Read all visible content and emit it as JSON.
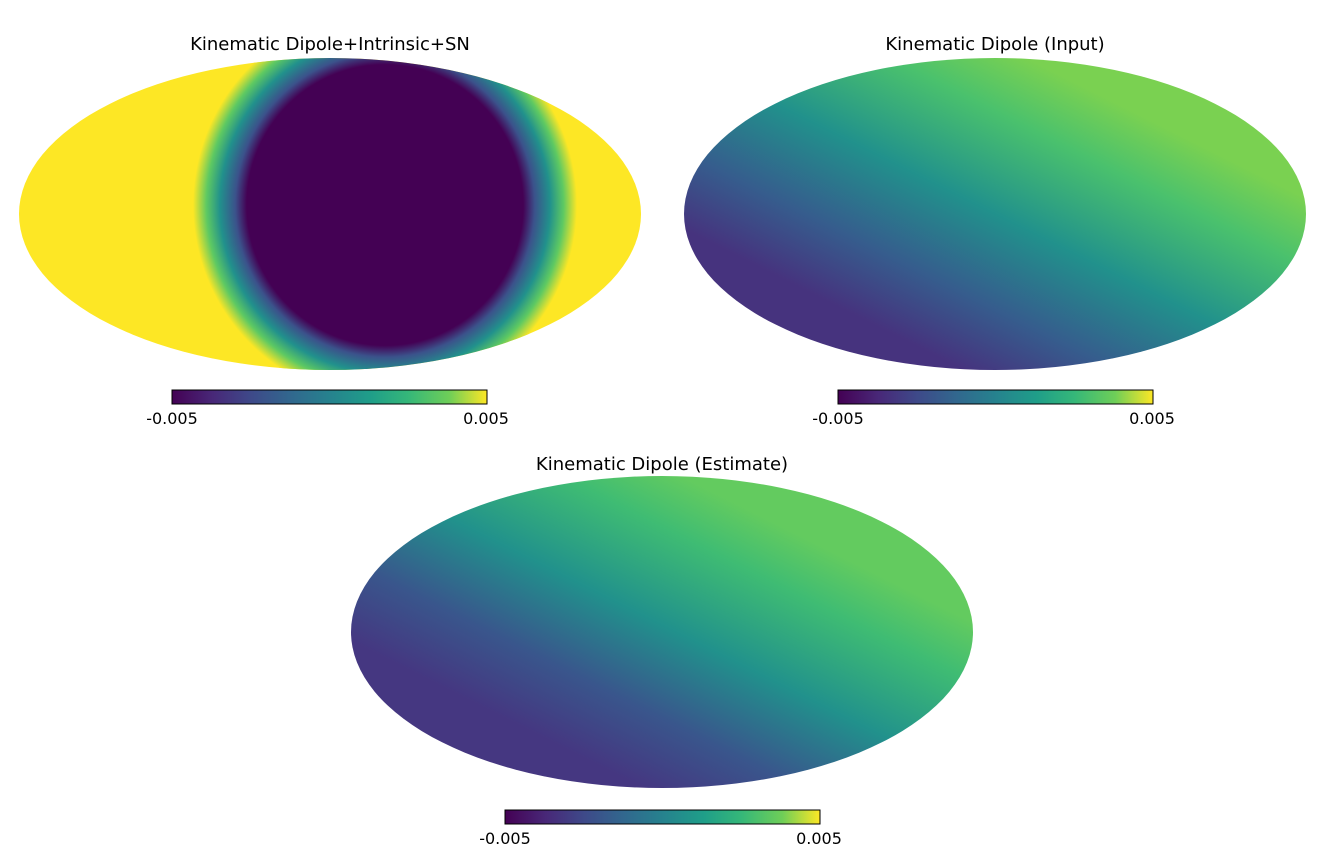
{
  "chart_data": [
    {
      "type": "heatmap",
      "projection": "mollweide",
      "title": "Kinematic Dipole+Intrinsic+SN",
      "colormap": "viridis",
      "colorbar": {
        "min": -0.005,
        "max": 0.005,
        "min_label": "-0.005",
        "max_label": "0.005",
        "orientation": "horizontal",
        "placement": "below"
      },
      "map_description_values": {
        "dominant_low_value": -0.005,
        "dominant_high_value": 0.005,
        "saturated": true
      }
    },
    {
      "type": "heatmap",
      "projection": "mollweide",
      "title": "Kinematic Dipole (Input)",
      "colormap": "viridis",
      "colorbar": {
        "min": -0.005,
        "max": 0.005,
        "min_label": "-0.005",
        "max_label": "0.005",
        "orientation": "horizontal",
        "placement": "below"
      },
      "map_description_values": {
        "dominant_low_value": -0.0027,
        "dominant_high_value": 0.0028,
        "saturated": false
      }
    },
    {
      "type": "heatmap",
      "projection": "mollweide",
      "title": "Kinematic Dipole (Estimate)",
      "colormap": "viridis",
      "colorbar": {
        "min": -0.005,
        "max": 0.005,
        "min_label": "-0.005",
        "max_label": "0.005",
        "orientation": "horizontal",
        "placement": "below"
      },
      "map_description_values": {
        "dominant_low_value": -0.0024,
        "dominant_high_value": 0.0025,
        "saturated": false
      }
    }
  ]
}
